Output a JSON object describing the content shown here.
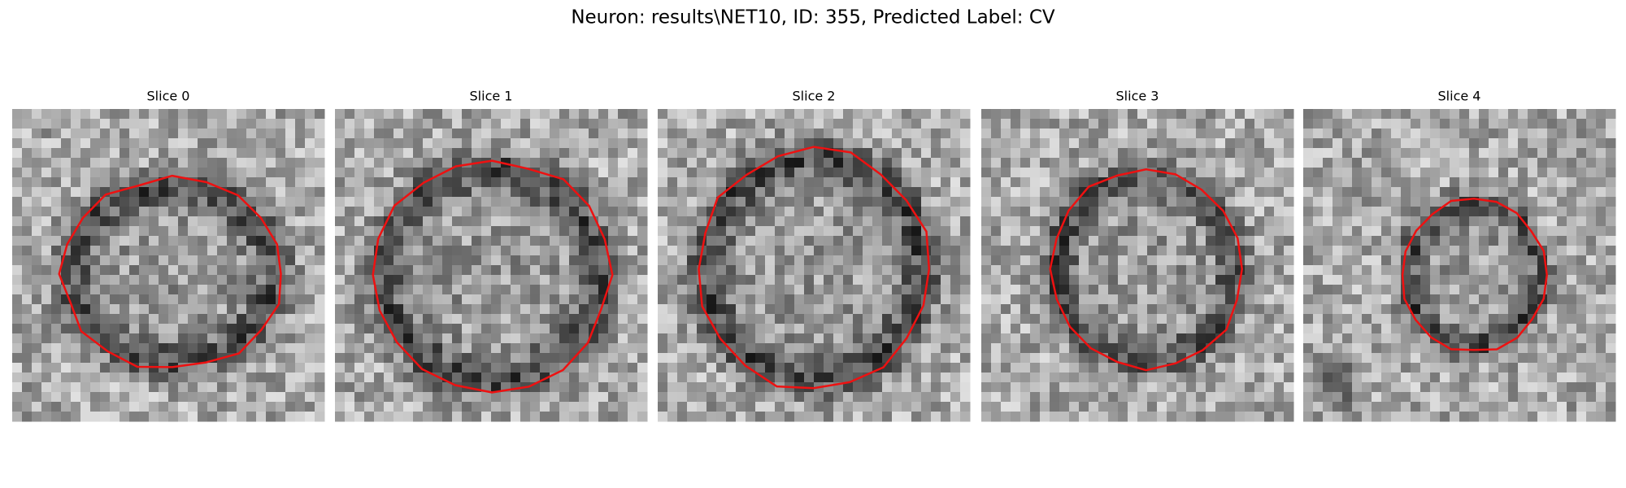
{
  "title": "Neuron: results\\NET10, ID: 355, Predicted Label: CV",
  "panels": [
    {
      "title": "Slice 0"
    },
    {
      "title": "Slice 1"
    },
    {
      "title": "Slice 2"
    },
    {
      "title": "Slice 3"
    },
    {
      "title": "Slice 4"
    }
  ]
}
